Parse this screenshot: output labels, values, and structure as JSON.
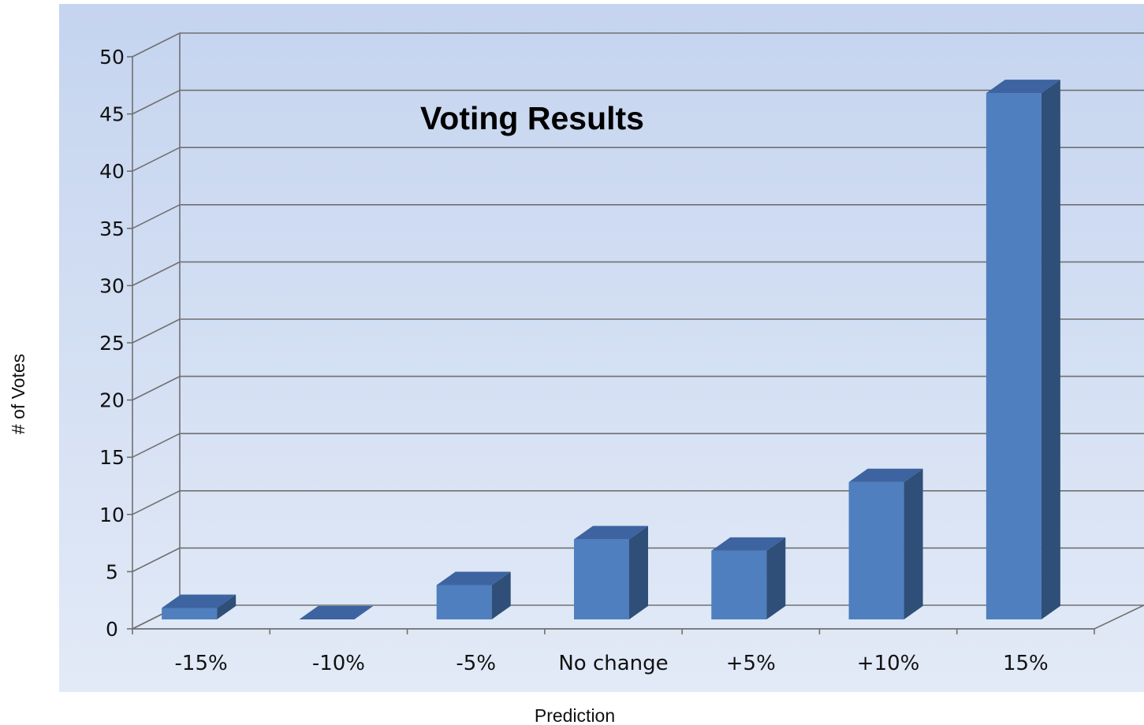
{
  "chart_data": {
    "type": "bar",
    "title": "Voting Results",
    "xlabel": "Prediction",
    "ylabel": "# of Votes",
    "categories": [
      "-15%",
      "-10%",
      "-5%",
      "No change",
      "+5%",
      "+10%",
      "15%"
    ],
    "values": [
      1,
      0,
      3,
      7,
      6,
      12,
      46
    ],
    "ylim": [
      0,
      50
    ],
    "yticks": [
      0,
      5,
      10,
      15,
      20,
      25,
      30,
      35,
      40,
      45,
      50
    ],
    "grid": true,
    "style": "3d-column",
    "colors": {
      "bar_front": "#4f7fbe",
      "bar_top": "#3d64a0",
      "bar_side": "#2f4f79",
      "plot_bg_top": "#c5d4ef",
      "plot_bg_bottom": "#dfe8f6",
      "grid": "#707070"
    }
  }
}
